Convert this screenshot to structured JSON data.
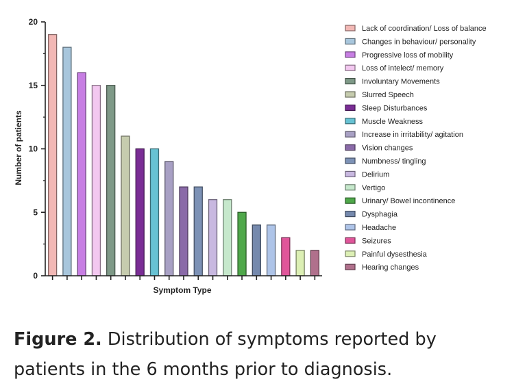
{
  "chart_data": {
    "type": "bar",
    "xlabel": "Symptom Type",
    "ylabel": "Number of patients",
    "ylim": [
      0,
      20
    ],
    "yticks": [
      0,
      5,
      10,
      15,
      20
    ],
    "legend_position": "right",
    "categories": [
      "Lack of coordination/ Loss of balance",
      "Changes in behaviour/ personality",
      "Progressive loss of mobility",
      "Loss of intelect/ memory",
      "Involuntary Movements",
      "Slurred Speech",
      "Sleep Disturbances",
      "Muscle Weakness",
      "Increase in irritability/ agitation",
      "Vision changes",
      "Numbness/ tingling",
      "Delirium",
      "Vertigo",
      "Urinary/ Bowel incontinence",
      "Dysphagia",
      "Headache",
      "Seizures",
      "Painful dysesthesia",
      "Hearing changes"
    ],
    "values": [
      19,
      18,
      16,
      15,
      15,
      11,
      10,
      10,
      9,
      7,
      7,
      6,
      6,
      5,
      4,
      4,
      3,
      2,
      2
    ],
    "colors": [
      "#f2b8b5",
      "#a8c6dc",
      "#c77ee3",
      "#f3c8f0",
      "#7f9a88",
      "#c6ccae",
      "#7a2d95",
      "#67c2d3",
      "#a8a0c4",
      "#8a6aa8",
      "#7d92b6",
      "#c8b8e0",
      "#c6e8cc",
      "#4fa84a",
      "#7589ad",
      "#aec4e8",
      "#e0559a",
      "#dcefb4",
      "#b0708c"
    ]
  },
  "caption": {
    "label": "Figure 2.",
    "text": " Distribution of symptoms reported by patients in the 6 months prior to diagnosis."
  }
}
